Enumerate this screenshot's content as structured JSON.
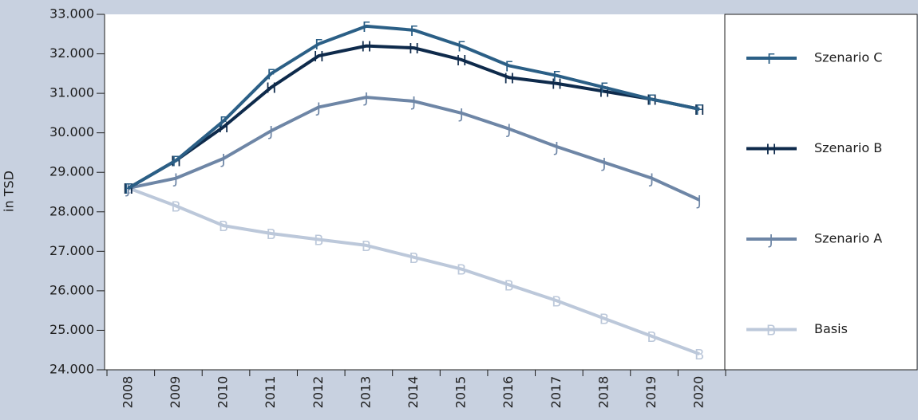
{
  "chart_data": {
    "type": "line",
    "y_label": "in TSD",
    "categories": [
      "2008",
      "2009",
      "2010",
      "2011",
      "2012",
      "2013",
      "2014",
      "2015",
      "2016",
      "2017",
      "2018",
      "2019",
      "2020"
    ],
    "series": [
      {
        "name": "Szenario C",
        "marker": "F",
        "color": "#2b5f86",
        "values": [
          28600,
          29300,
          30300,
          31500,
          32250,
          32700,
          32600,
          32200,
          31700,
          31450,
          31150,
          30850,
          30600
        ]
      },
      {
        "name": "Szenario B",
        "marker": "H",
        "color": "#0e2a4b",
        "values": [
          28600,
          29300,
          30150,
          31150,
          31950,
          32200,
          32150,
          31850,
          31400,
          31250,
          31050,
          30850,
          30600
        ]
      },
      {
        "name": "Szenario A",
        "marker": "J",
        "color": "#6e86a6",
        "values": [
          28600,
          28850,
          29350,
          30050,
          30650,
          30900,
          30800,
          30500,
          30100,
          29650,
          29250,
          28850,
          28300
        ]
      },
      {
        "name": "Basis",
        "marker": "B",
        "color": "#bcc8da",
        "values": [
          28600,
          28150,
          27650,
          27450,
          27300,
          27150,
          26850,
          26550,
          26150,
          25750,
          25300,
          24850,
          24400
        ]
      }
    ],
    "ylim": [
      24000,
      33000
    ],
    "yticks": [
      {
        "value": 24000,
        "label": "24.000"
      },
      {
        "value": 25000,
        "label": "25.000"
      },
      {
        "value": 26000,
        "label": "26.000"
      },
      {
        "value": 27000,
        "label": "27.000"
      },
      {
        "value": 28000,
        "label": "28.000"
      },
      {
        "value": 29000,
        "label": "29.000"
      },
      {
        "value": 30000,
        "label": "30.000"
      },
      {
        "value": 31000,
        "label": "31.000"
      },
      {
        "value": 32000,
        "label": "32.000"
      },
      {
        "value": 33000,
        "label": "33.000"
      }
    ],
    "legend": "right"
  }
}
